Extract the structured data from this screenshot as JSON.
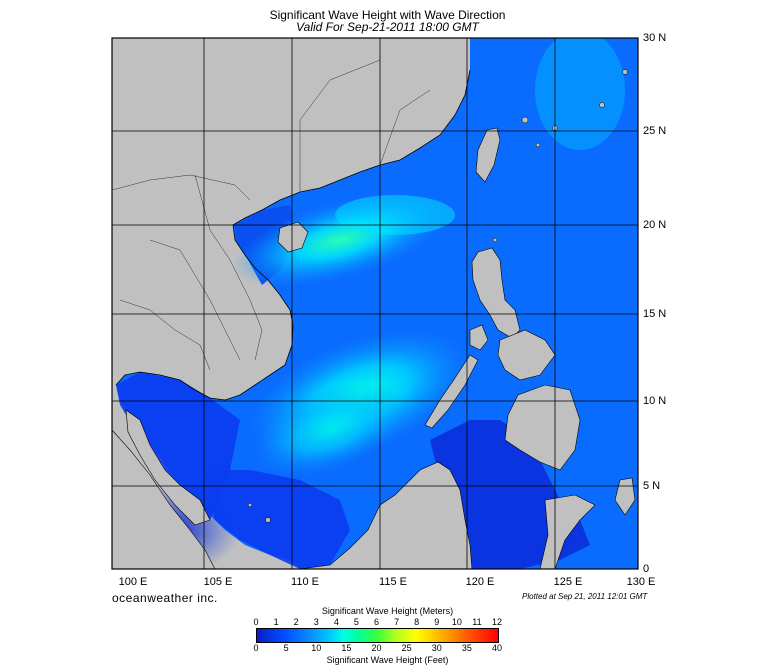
{
  "title": "Significant Wave Height with Wave Direction",
  "subtitle": "Valid For Sep-21-2011 18:00 GMT",
  "brand": "oceanweather inc.",
  "plotted_note": "Plotted at Sep 21, 2011 12:01 GMT",
  "lat_labels": [
    "30 N",
    "25 N",
    "20 N",
    "15 N",
    "10 N",
    "5 N",
    "0"
  ],
  "lon_labels": [
    "100 E",
    "105 E",
    "110 E",
    "115 E",
    "120 E",
    "125 E",
    "130 E"
  ],
  "colorbar": {
    "title_meters": "Significant Wave Height (Meters)",
    "title_feet": "Significant Wave Height (Feet)",
    "meter_ticks": [
      "0",
      "1",
      "2",
      "3",
      "4",
      "5",
      "6",
      "7",
      "8",
      "9",
      "10",
      "11",
      "12"
    ],
    "feet_ticks": [
      "0",
      "5",
      "10",
      "15",
      "20",
      "25",
      "30",
      "35",
      "40"
    ]
  },
  "colors": {
    "land": "#c0c0c0",
    "sea_deep": "#0a1ec8",
    "sea_blue": "#0050ff",
    "sea_light": "#0a8cff",
    "sea_cyan": "#00d2ff",
    "sea_green": "#28ffb4",
    "grid": "#000000",
    "arrow": "#000000"
  }
}
